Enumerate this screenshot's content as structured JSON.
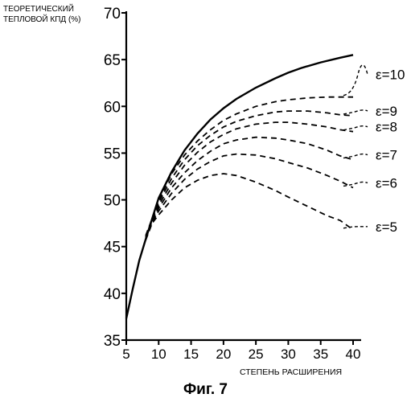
{
  "chart_data": {
    "type": "line",
    "ylabel_lines": [
      "ТЕОРЕТИЧЕСКИЙ",
      "ТЕПЛОВОЙ КПД (%)"
    ],
    "xlabel": "СТЕПЕНЬ РАСШИРЕНИЯ",
    "caption": "Фиг. 7",
    "xlim": [
      5,
      40
    ],
    "ylim": [
      35,
      70
    ],
    "xticks": [
      5,
      10,
      15,
      20,
      25,
      30,
      35,
      40
    ],
    "yticks": [
      35,
      40,
      45,
      50,
      55,
      60,
      65,
      70
    ],
    "grid": false,
    "series": [
      {
        "style": "solid",
        "x": [
          5,
          6,
          7,
          8,
          9,
          10,
          12,
          14,
          16,
          18,
          20,
          22,
          25,
          28,
          30,
          32,
          35,
          38,
          40
        ],
        "y": [
          37.3,
          40.5,
          43.5,
          45.8,
          48.0,
          50.2,
          53.0,
          55.3,
          57.1,
          58.6,
          59.8,
          60.8,
          62.0,
          63.0,
          63.6,
          64.1,
          64.7,
          65.2,
          65.5
        ]
      },
      {
        "style": "dashed",
        "label": "ε=10",
        "x": [
          8,
          9,
          10,
          12,
          14,
          16,
          18,
          20,
          22,
          25,
          28,
          30,
          33,
          36,
          38,
          40
        ],
        "y": [
          46.2,
          48.0,
          49.9,
          52.8,
          54.8,
          56.3,
          57.5,
          58.5,
          59.2,
          60.0,
          60.5,
          60.7,
          60.9,
          61.0,
          61.0,
          61.0
        ]
      },
      {
        "style": "dashed",
        "label": "ε=9",
        "x": [
          8,
          9,
          10,
          12,
          14,
          16,
          18,
          20,
          22,
          25,
          28,
          30,
          33,
          36,
          38,
          40
        ],
        "y": [
          46.1,
          47.9,
          49.7,
          52.3,
          54.3,
          55.8,
          56.9,
          57.8,
          58.4,
          59.0,
          59.4,
          59.5,
          59.5,
          59.3,
          59.1,
          59.0
        ]
      },
      {
        "style": "dashed",
        "label": "ε=8",
        "x": [
          8,
          9,
          10,
          12,
          14,
          16,
          18,
          20,
          22,
          25,
          28,
          30,
          33,
          36,
          38,
          40
        ],
        "y": [
          46.0,
          47.8,
          49.4,
          51.8,
          53.7,
          55.1,
          56.2,
          57.0,
          57.6,
          58.1,
          58.3,
          58.3,
          58.1,
          57.8,
          57.5,
          57.3
        ]
      },
      {
        "style": "dashed",
        "label": "ε=7",
        "x": [
          8,
          9,
          10,
          12,
          14,
          16,
          18,
          20,
          22,
          25,
          28,
          30,
          33,
          36,
          38,
          40
        ],
        "y": [
          45.9,
          47.7,
          49.1,
          51.3,
          52.9,
          54.2,
          55.2,
          56.0,
          56.4,
          56.7,
          56.6,
          56.4,
          56.0,
          55.3,
          54.7,
          54.3
        ]
      },
      {
        "style": "dashed",
        "label": "ε=6",
        "x": [
          8,
          9,
          10,
          12,
          14,
          16,
          18,
          20,
          22,
          25,
          28,
          30,
          33,
          36,
          38,
          40
        ],
        "y": [
          45.8,
          47.6,
          48.8,
          50.7,
          52.2,
          53.3,
          54.1,
          54.7,
          54.9,
          54.8,
          54.4,
          54.0,
          53.4,
          52.6,
          52.0,
          51.3
        ]
      },
      {
        "style": "dashed",
        "label": "ε=5",
        "x": [
          8,
          9,
          10,
          12,
          14,
          16,
          18,
          20,
          22,
          25,
          28,
          30,
          33,
          36,
          38,
          40
        ],
        "y": [
          45.7,
          47.5,
          48.4,
          50.0,
          51.3,
          52.1,
          52.6,
          52.8,
          52.6,
          51.9,
          51.0,
          50.3,
          49.3,
          48.3,
          47.8,
          46.8
        ]
      }
    ]
  }
}
